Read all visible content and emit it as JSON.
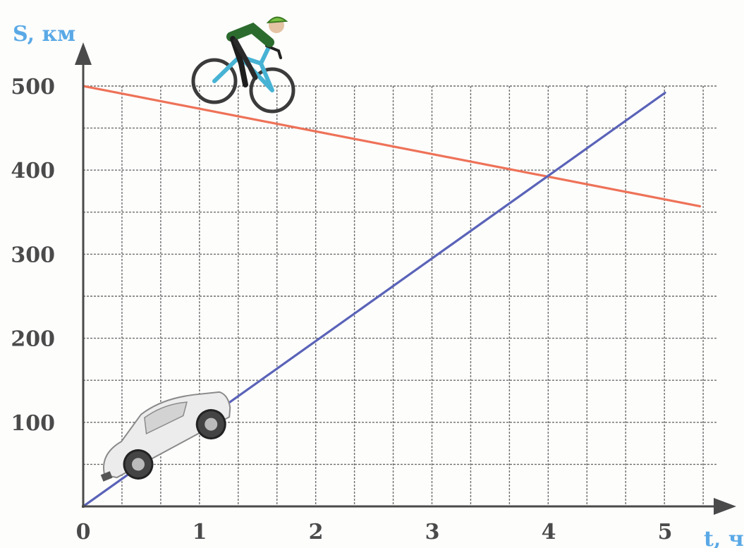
{
  "chart_data": {
    "type": "line",
    "xlabel": "t, ч",
    "ylabel": "S, км",
    "xlim": [
      0,
      5.35
    ],
    "ylim": [
      0,
      500
    ],
    "x_ticks": [
      0,
      1,
      2,
      3,
      4,
      5
    ],
    "y_ticks": [
      100,
      200,
      300,
      400,
      500
    ],
    "x_tick_labels": [
      "0",
      "1",
      "2",
      "3",
      "4",
      "5"
    ],
    "y_tick_labels": [
      "100",
      "200",
      "300",
      "400",
      "500"
    ],
    "grid": true,
    "grid_step_x": 0.333,
    "grid_step_y": 50,
    "series": [
      {
        "color": "#ee7258",
        "x": [
          0,
          5.3
        ],
        "y": [
          500,
          357
        ],
        "icon": "bicycle-icon"
      },
      {
        "color": "#5a63b8",
        "x": [
          0,
          5
        ],
        "y": [
          0,
          492
        ],
        "icon": "car-icon"
      }
    ],
    "intersection": {
      "x": 4,
      "y": 391
    }
  },
  "colors": {
    "axis": "#4a4a4a",
    "axis_title": "#5aa9e6",
    "grid": "#555555"
  }
}
